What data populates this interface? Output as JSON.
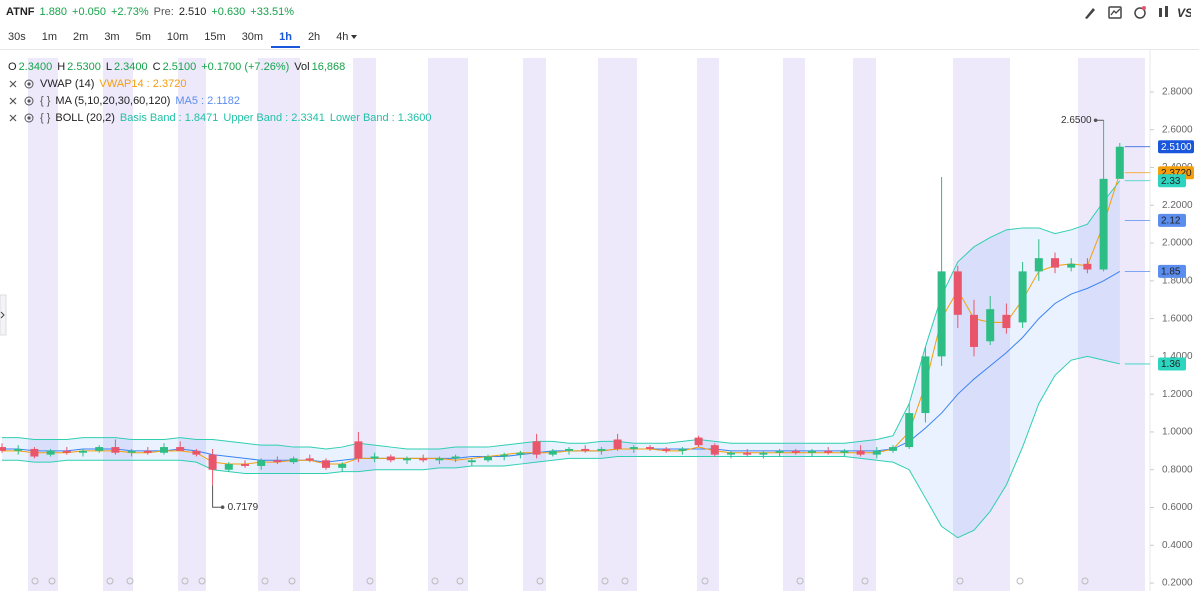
{
  "header": {
    "symbol": "ATNF",
    "price": "1.880",
    "change": "+0.050",
    "change_pct": "+2.73%",
    "pre_label": "Pre:",
    "pre_price": "2.510",
    "pre_change": "+0.630",
    "pre_change_pct": "+33.51%",
    "logo": "VS"
  },
  "timeframes": [
    "30s",
    "1m",
    "2m",
    "3m",
    "5m",
    "10m",
    "15m",
    "30m",
    "1h",
    "2h",
    "4h"
  ],
  "active_timeframe": "1h",
  "chart_data": {
    "type": "candlestick",
    "ohlc_legend": [
      {
        "label": "O",
        "value": "2.3400"
      },
      {
        "label": "H",
        "value": "2.5300"
      },
      {
        "label": "L",
        "value": "2.3400"
      },
      {
        "label": "C",
        "value": "2.5100"
      }
    ],
    "change": "+0.1700 (+7.26%)",
    "vol_label": "Vol",
    "vol": "16,868",
    "indicators": [
      {
        "name": "VWAP (14)",
        "values": [
          "VWAP14 : 2.3720"
        ],
        "color": "#f59e0b"
      },
      {
        "bracket": "{ }",
        "name": "MA (5,10,20,30,60,120)",
        "values": [
          "MA5 : 2.1182"
        ],
        "color": "#5b8def"
      },
      {
        "bracket": "{ }",
        "name": "BOLL (20,2)",
        "values": [
          "Basis Band : 1.8471",
          "Upper Band : 2.3341",
          "Lower Band : 1.3600"
        ],
        "color": "#22c1a6"
      }
    ],
    "ylim": [
      0.158,
      3.022
    ],
    "yticks": [
      {
        "value": 0.2,
        "label": "0.2000"
      },
      {
        "value": 0.4,
        "label": "0.4000"
      },
      {
        "value": 0.6,
        "label": "0.6000"
      },
      {
        "value": 0.8,
        "label": "0.8000"
      },
      {
        "value": 1.0,
        "label": "1.0000"
      },
      {
        "value": 1.2,
        "label": "1.2000"
      },
      {
        "value": 1.4,
        "label": "1.4000"
      },
      {
        "value": 1.6,
        "label": "1.6000"
      },
      {
        "value": 1.8,
        "label": "1.8000"
      },
      {
        "value": 2.0,
        "label": "2.0000"
      },
      {
        "value": 2.2,
        "label": "2.2000"
      },
      {
        "value": 2.4,
        "label": "2.4000"
      },
      {
        "value": 2.6,
        "label": "2.6000"
      },
      {
        "value": 2.8,
        "label": "2.8000"
      }
    ],
    "up_color": "#2ebd85",
    "down_color": "#e9566b",
    "candles": {
      "open": [
        0.92,
        0.9,
        0.91,
        0.88,
        0.9,
        0.89,
        0.9,
        0.92,
        0.89,
        0.9,
        0.89,
        0.92,
        0.9,
        0.88,
        0.8,
        0.83,
        0.82,
        0.85,
        0.84,
        0.86,
        0.85,
        0.81,
        0.95,
        0.86,
        0.87,
        0.85,
        0.86,
        0.85,
        0.86,
        0.84,
        0.85,
        0.87,
        0.88,
        0.95,
        0.88,
        0.9,
        0.91,
        0.9,
        0.96,
        0.91,
        0.92,
        0.91,
        0.9,
        0.97,
        0.93,
        0.88,
        0.89,
        0.88,
        0.89,
        0.9,
        0.89,
        0.9,
        0.89,
        0.9,
        0.88,
        0.9,
        0.92,
        1.1,
        1.4,
        1.85,
        1.62,
        1.48,
        1.62,
        1.58,
        1.85,
        1.92,
        1.87,
        1.89,
        1.86,
        2.34
      ],
      "high": [
        0.94,
        0.93,
        0.92,
        0.91,
        0.92,
        0.91,
        0.93,
        0.96,
        0.91,
        0.92,
        0.94,
        0.95,
        0.91,
        0.91,
        0.84,
        0.85,
        0.86,
        0.87,
        0.87,
        0.88,
        0.86,
        0.84,
        1.0,
        0.89,
        0.88,
        0.87,
        0.88,
        0.87,
        0.88,
        0.86,
        0.88,
        0.89,
        0.9,
        0.99,
        0.91,
        0.92,
        0.93,
        0.92,
        0.99,
        0.93,
        0.93,
        0.92,
        0.92,
        0.98,
        0.94,
        0.9,
        0.91,
        0.9,
        0.91,
        0.91,
        0.91,
        0.92,
        0.91,
        0.93,
        0.92,
        0.93,
        1.15,
        1.45,
        2.35,
        1.88,
        1.7,
        1.72,
        1.68,
        1.9,
        2.02,
        1.95,
        1.92,
        1.92,
        2.65,
        2.53
      ],
      "low": [
        0.89,
        0.88,
        0.86,
        0.87,
        0.88,
        0.87,
        0.89,
        0.88,
        0.87,
        0.88,
        0.88,
        0.9,
        0.87,
        0.7179,
        0.79,
        0.81,
        0.8,
        0.83,
        0.83,
        0.84,
        0.8,
        0.79,
        0.84,
        0.84,
        0.84,
        0.83,
        0.84,
        0.83,
        0.84,
        0.82,
        0.84,
        0.85,
        0.86,
        0.86,
        0.87,
        0.88,
        0.89,
        0.88,
        0.9,
        0.89,
        0.9,
        0.89,
        0.88,
        0.92,
        0.87,
        0.86,
        0.87,
        0.86,
        0.87,
        0.88,
        0.87,
        0.88,
        0.87,
        0.87,
        0.86,
        0.89,
        0.91,
        1.05,
        1.35,
        1.55,
        1.4,
        1.46,
        1.52,
        1.55,
        1.8,
        1.84,
        1.85,
        1.84,
        1.85,
        2.34
      ],
      "close": [
        0.9,
        0.91,
        0.87,
        0.9,
        0.89,
        0.9,
        0.92,
        0.89,
        0.9,
        0.89,
        0.92,
        0.9,
        0.88,
        0.8,
        0.83,
        0.82,
        0.85,
        0.84,
        0.86,
        0.85,
        0.81,
        0.83,
        0.86,
        0.87,
        0.85,
        0.86,
        0.85,
        0.86,
        0.87,
        0.85,
        0.87,
        0.88,
        0.89,
        0.88,
        0.9,
        0.91,
        0.9,
        0.91,
        0.91,
        0.92,
        0.91,
        0.9,
        0.91,
        0.93,
        0.88,
        0.89,
        0.88,
        0.89,
        0.9,
        0.89,
        0.9,
        0.89,
        0.9,
        0.88,
        0.9,
        0.92,
        1.1,
        1.4,
        1.85,
        1.62,
        1.45,
        1.65,
        1.55,
        1.85,
        1.92,
        1.87,
        1.89,
        1.86,
        2.34,
        2.51
      ]
    },
    "boll_upper": {
      "color": "#2fcfb0",
      "values": [
        0.97,
        0.97,
        0.96,
        0.96,
        0.96,
        0.97,
        0.97,
        0.97,
        0.96,
        0.96,
        0.96,
        0.97,
        0.96,
        0.96,
        0.95,
        0.94,
        0.93,
        0.93,
        0.92,
        0.92,
        0.91,
        0.92,
        0.94,
        0.93,
        0.92,
        0.91,
        0.91,
        0.91,
        0.92,
        0.92,
        0.92,
        0.93,
        0.94,
        0.95,
        0.95,
        0.94,
        0.94,
        0.95,
        0.95,
        0.94,
        0.94,
        0.94,
        0.95,
        0.96,
        0.95,
        0.94,
        0.94,
        0.94,
        0.94,
        0.94,
        0.94,
        0.94,
        0.94,
        0.95,
        0.96,
        0.98,
        1.15,
        1.45,
        1.72,
        1.9,
        1.98,
        2.03,
        2.07,
        2.08,
        2.08,
        2.05,
        2.07,
        2.1,
        2.22,
        2.33
      ]
    },
    "boll_lower": {
      "color": "#2fcfb0",
      "values": [
        0.85,
        0.85,
        0.84,
        0.84,
        0.85,
        0.85,
        0.85,
        0.85,
        0.85,
        0.85,
        0.85,
        0.85,
        0.84,
        0.8,
        0.79,
        0.78,
        0.78,
        0.78,
        0.78,
        0.78,
        0.78,
        0.79,
        0.79,
        0.8,
        0.8,
        0.8,
        0.8,
        0.81,
        0.81,
        0.82,
        0.82,
        0.82,
        0.83,
        0.84,
        0.85,
        0.86,
        0.86,
        0.86,
        0.87,
        0.87,
        0.87,
        0.87,
        0.87,
        0.87,
        0.87,
        0.87,
        0.87,
        0.87,
        0.87,
        0.87,
        0.87,
        0.87,
        0.87,
        0.86,
        0.85,
        0.84,
        0.8,
        0.65,
        0.5,
        0.44,
        0.48,
        0.58,
        0.72,
        0.92,
        1.15,
        1.3,
        1.38,
        1.4,
        1.38,
        1.36
      ]
    },
    "boll_basis": {
      "color": "#3b82f6",
      "values": [
        0.91,
        0.91,
        0.9,
        0.9,
        0.9,
        0.91,
        0.91,
        0.91,
        0.9,
        0.9,
        0.9,
        0.91,
        0.9,
        0.88,
        0.87,
        0.86,
        0.85,
        0.85,
        0.85,
        0.85,
        0.84,
        0.85,
        0.86,
        0.86,
        0.86,
        0.86,
        0.86,
        0.86,
        0.86,
        0.87,
        0.87,
        0.87,
        0.88,
        0.89,
        0.9,
        0.9,
        0.9,
        0.9,
        0.91,
        0.91,
        0.91,
        0.91,
        0.91,
        0.91,
        0.91,
        0.9,
        0.9,
        0.9,
        0.9,
        0.9,
        0.9,
        0.9,
        0.9,
        0.9,
        0.9,
        0.91,
        0.95,
        1.02,
        1.1,
        1.2,
        1.28,
        1.35,
        1.42,
        1.5,
        1.6,
        1.68,
        1.73,
        1.76,
        1.8,
        1.85
      ]
    },
    "vwap": {
      "color": "#f59e0b",
      "values": [
        0.9,
        0.9,
        0.89,
        0.89,
        0.89,
        0.9,
        0.9,
        0.9,
        0.89,
        0.89,
        0.9,
        0.9,
        0.89,
        0.84,
        0.83,
        0.83,
        0.84,
        0.84,
        0.85,
        0.85,
        0.83,
        0.83,
        0.86,
        0.86,
        0.86,
        0.86,
        0.86,
        0.86,
        0.85,
        0.86,
        0.87,
        0.88,
        0.89,
        0.89,
        0.89,
        0.9,
        0.9,
        0.9,
        0.91,
        0.91,
        0.91,
        0.9,
        0.9,
        0.92,
        0.9,
        0.89,
        0.89,
        0.89,
        0.89,
        0.89,
        0.89,
        0.89,
        0.89,
        0.89,
        0.89,
        0.91,
        1.0,
        1.25,
        1.6,
        1.75,
        1.6,
        1.58,
        1.58,
        1.7,
        1.85,
        1.88,
        1.89,
        1.88,
        2.1,
        2.37
      ]
    },
    "price_tags": [
      {
        "value": 2.51,
        "label": "2.5100",
        "color": "#1a56db",
        "text_color": "#ffffff"
      },
      {
        "value": 2.372,
        "label": "2.3720",
        "color": "#f59e0b",
        "text_color": "#222222"
      },
      {
        "value": 2.33,
        "label": "2.33",
        "color": "#2dd4bf",
        "text_color": "#222222"
      },
      {
        "value": 2.12,
        "label": "2.12",
        "color": "#5b8def",
        "text_color": "#222222"
      },
      {
        "value": 1.85,
        "label": "1.85",
        "color": "#5b8def",
        "text_color": "#222222"
      },
      {
        "value": 1.36,
        "label": "1.36",
        "color": "#2dd4bf",
        "text_color": "#222222"
      }
    ],
    "annotations": [
      {
        "value": 2.65,
        "label": "2.6500"
      },
      {
        "value": 0.7179,
        "label": "0.7179"
      }
    ]
  }
}
